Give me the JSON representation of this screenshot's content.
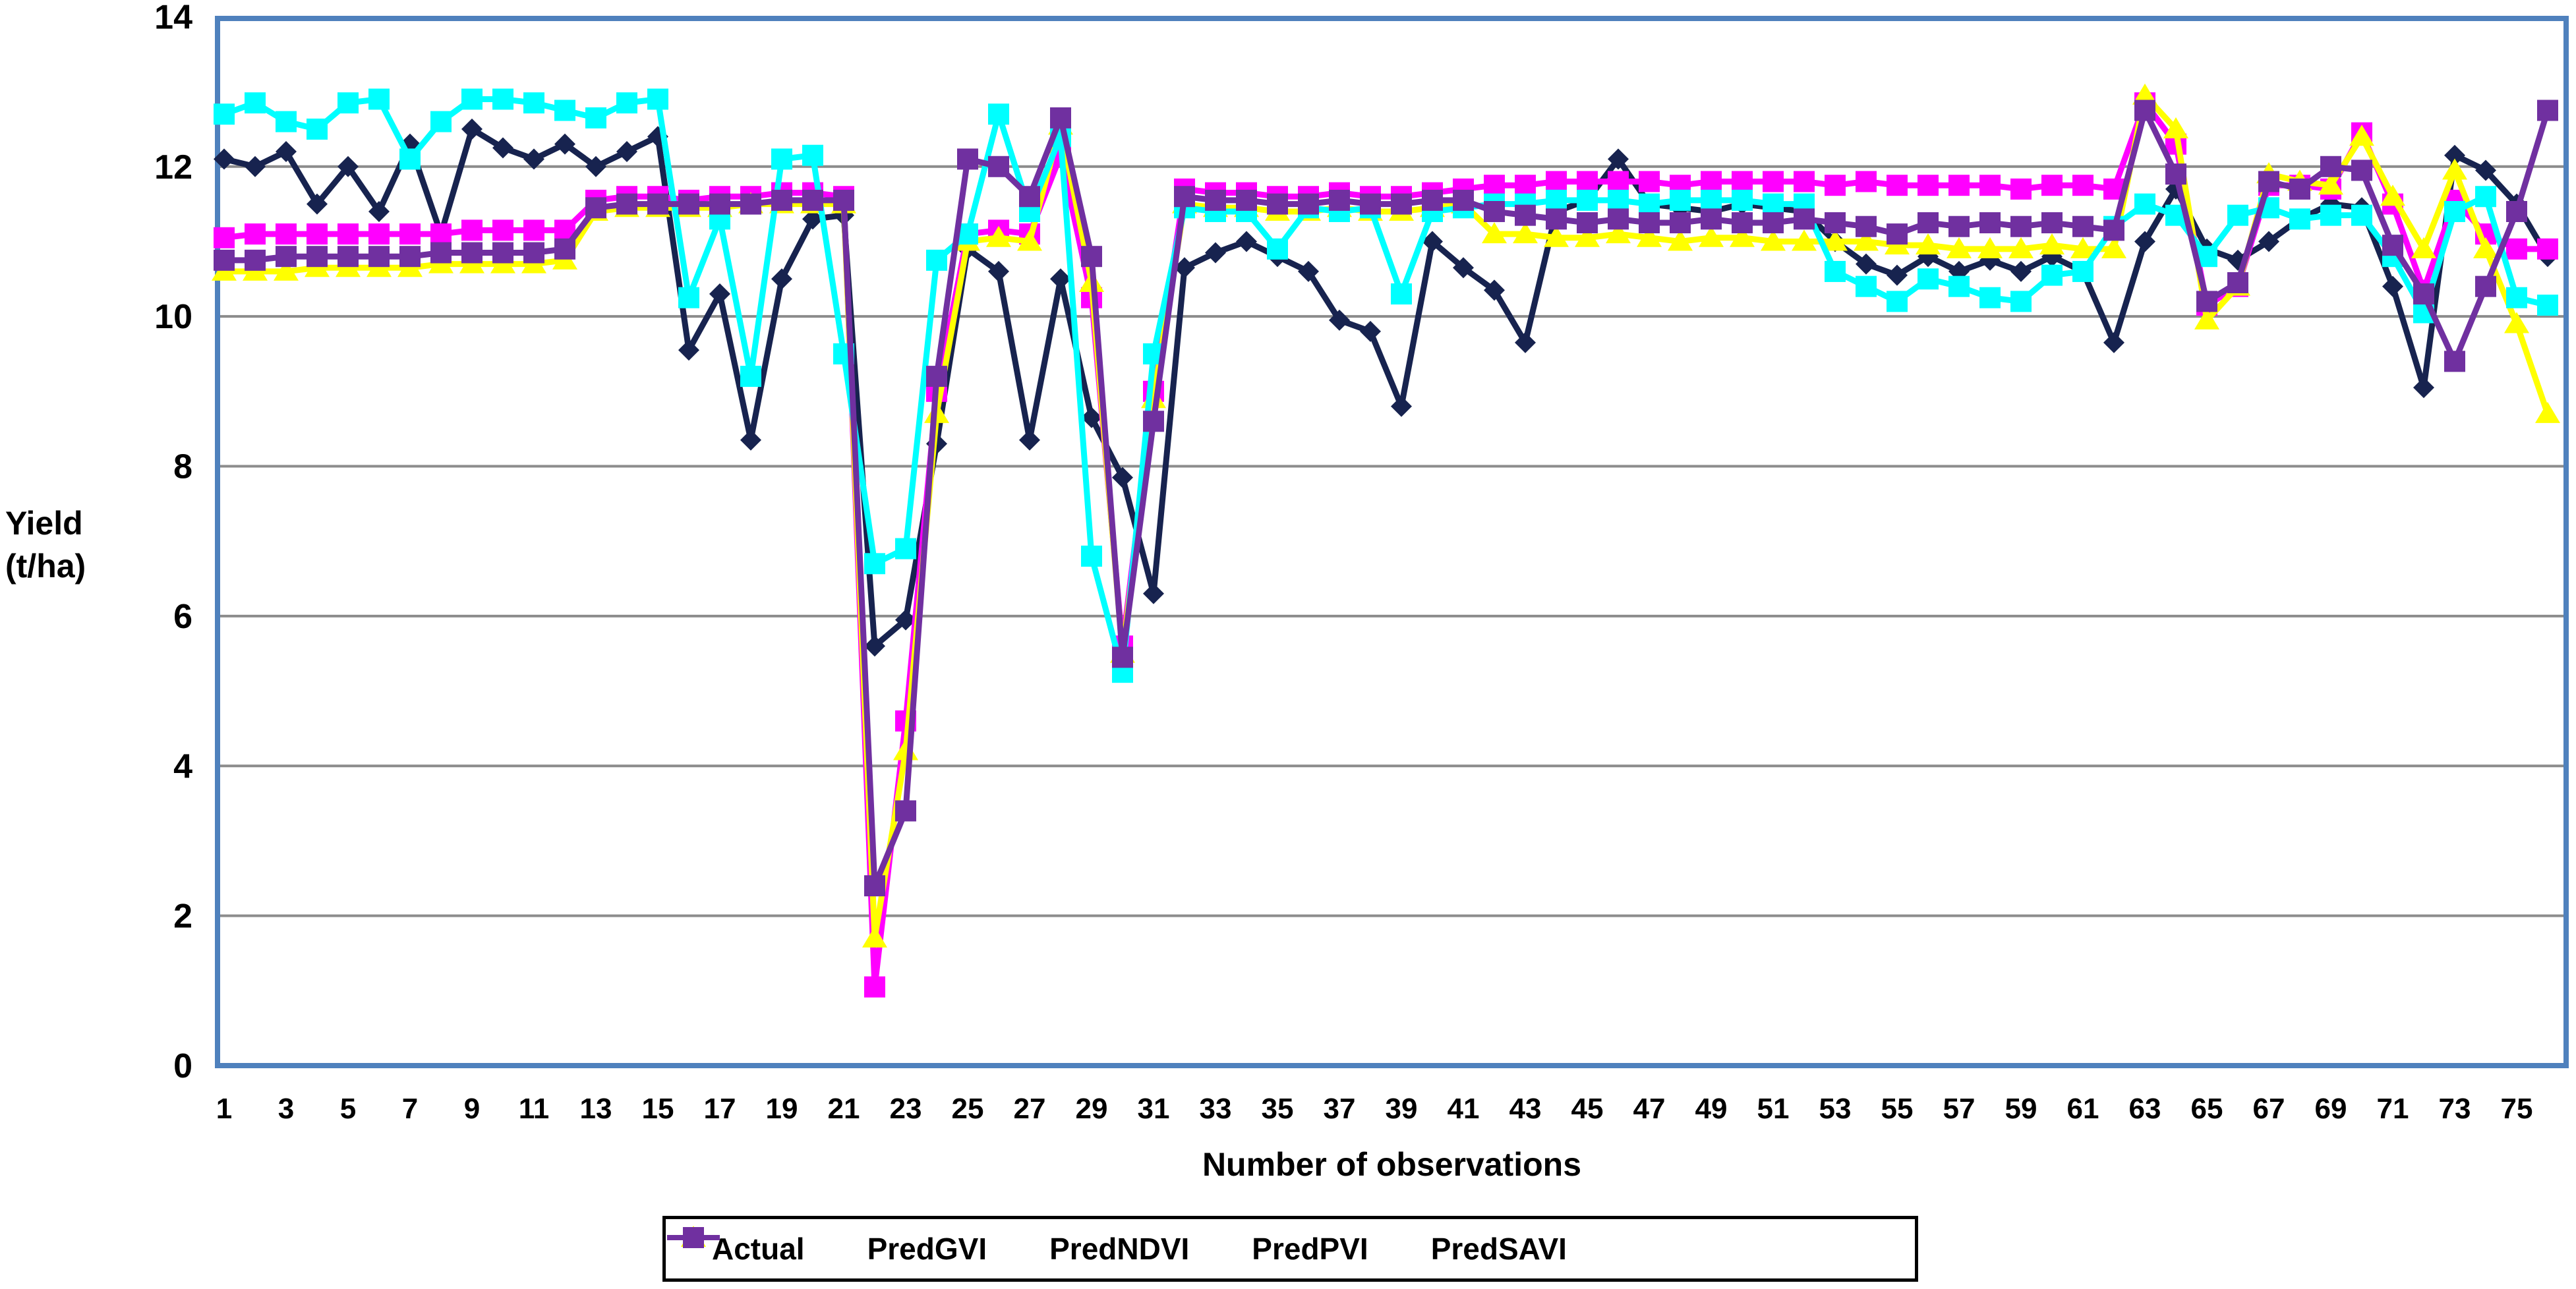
{
  "chart_data": {
    "type": "line",
    "title": "",
    "xlabel": "Number of observations",
    "ylabel_line1": "Yield",
    "ylabel_line2": "(t/ha)",
    "ylim": [
      0,
      14
    ],
    "yticks": [
      0,
      2,
      4,
      6,
      8,
      10,
      12,
      14
    ],
    "x_tick_labels": [
      "1",
      "3",
      "5",
      "7",
      "9",
      "11",
      "13",
      "15",
      "17",
      "19",
      "21",
      "23",
      "25",
      "27",
      "29",
      "31",
      "33",
      "35",
      "37",
      "39",
      "41",
      "43",
      "45",
      "47",
      "49",
      "51",
      "53",
      "55",
      "57",
      "59",
      "61",
      "63",
      "65",
      "67",
      "69",
      "71",
      "73",
      "75"
    ],
    "n_observations": 76,
    "grid": true,
    "legend_position": "bottom",
    "frame_color": "#4F81BD",
    "gridline_color": "#8C8C8C",
    "series": [
      {
        "name": "Actual",
        "color": "#17234F",
        "marker": "diamond",
        "values": [
          12.1,
          12.0,
          12.2,
          11.5,
          12.0,
          11.4,
          12.3,
          11.1,
          12.5,
          12.25,
          12.1,
          12.3,
          12.0,
          12.2,
          12.4,
          9.55,
          10.3,
          8.35,
          10.5,
          11.3,
          11.35,
          5.6,
          5.95,
          8.3,
          10.9,
          10.6,
          8.35,
          10.5,
          8.65,
          7.85,
          6.3,
          10.65,
          10.85,
          11.0,
          10.8,
          10.6,
          9.95,
          9.8,
          8.8,
          11.0,
          10.65,
          10.35,
          9.65,
          11.4,
          11.55,
          12.1,
          11.5,
          11.45,
          11.4,
          11.5,
          11.45,
          11.4,
          11.0,
          10.7,
          10.55,
          10.8,
          10.6,
          10.75,
          10.6,
          10.8,
          10.6,
          9.65,
          11.0,
          11.7,
          10.9,
          10.75,
          11.0,
          11.3,
          11.5,
          11.45,
          10.4,
          9.05,
          12.15,
          11.95,
          11.5,
          10.8
        ]
      },
      {
        "name": "PredGVI",
        "color": "#FF00FF",
        "marker": "square",
        "values": [
          11.05,
          11.1,
          11.1,
          11.1,
          11.1,
          11.1,
          11.1,
          11.1,
          11.15,
          11.15,
          11.15,
          11.15,
          11.55,
          11.6,
          11.6,
          11.55,
          11.6,
          11.6,
          11.65,
          11.65,
          11.6,
          1.05,
          4.6,
          9.0,
          11.1,
          11.15,
          11.1,
          12.15,
          10.25,
          5.6,
          9.0,
          11.7,
          11.65,
          11.65,
          11.6,
          11.6,
          11.65,
          11.6,
          11.6,
          11.65,
          11.7,
          11.75,
          11.75,
          11.8,
          11.8,
          11.8,
          11.8,
          11.75,
          11.8,
          11.8,
          11.8,
          11.8,
          11.75,
          11.8,
          11.75,
          11.75,
          11.75,
          11.75,
          11.7,
          11.75,
          11.75,
          11.7,
          12.85,
          12.3,
          10.15,
          10.4,
          11.75,
          11.75,
          11.7,
          12.45,
          11.5,
          10.35,
          11.55,
          11.1,
          10.9,
          10.9
        ]
      },
      {
        "name": "PredNDVI",
        "color": "#FFFF00",
        "marker": "triangle",
        "values": [
          10.6,
          10.6,
          10.6,
          10.65,
          10.65,
          10.65,
          10.65,
          10.7,
          10.7,
          10.7,
          10.7,
          10.75,
          11.4,
          11.45,
          11.45,
          11.45,
          11.45,
          11.5,
          11.5,
          11.5,
          11.5,
          1.7,
          4.2,
          8.7,
          11.0,
          11.05,
          11.0,
          12.55,
          10.45,
          5.5,
          8.9,
          11.5,
          11.45,
          11.45,
          11.4,
          11.4,
          11.45,
          11.4,
          11.4,
          11.45,
          11.5,
          11.1,
          11.1,
          11.05,
          11.05,
          11.1,
          11.05,
          11.0,
          11.05,
          11.05,
          11.0,
          11.0,
          11.0,
          11.0,
          10.95,
          10.95,
          10.9,
          10.9,
          10.9,
          10.95,
          10.9,
          10.9,
          12.95,
          12.5,
          9.95,
          10.4,
          11.9,
          11.8,
          11.75,
          12.4,
          11.6,
          10.9,
          11.95,
          10.9,
          9.9,
          8.7
        ]
      },
      {
        "name": "PredPVI",
        "color": "#00FFFF",
        "marker": "square",
        "values": [
          12.7,
          12.85,
          12.6,
          12.5,
          12.85,
          12.9,
          12.1,
          12.6,
          12.9,
          12.9,
          12.85,
          12.75,
          12.65,
          12.85,
          12.9,
          10.25,
          11.3,
          9.2,
          12.1,
          12.15,
          9.5,
          6.7,
          6.9,
          10.75,
          11.1,
          12.7,
          11.4,
          12.4,
          6.8,
          5.25,
          9.5,
          11.45,
          11.4,
          11.4,
          10.9,
          11.45,
          11.4,
          11.45,
          10.3,
          11.4,
          11.45,
          11.5,
          11.5,
          11.55,
          11.55,
          11.55,
          11.5,
          11.55,
          11.55,
          11.55,
          11.5,
          11.5,
          10.6,
          10.4,
          10.2,
          10.5,
          10.4,
          10.25,
          10.2,
          10.55,
          10.6,
          11.2,
          11.5,
          11.35,
          10.8,
          11.35,
          11.45,
          11.3,
          11.35,
          11.35,
          10.8,
          10.05,
          11.4,
          11.6,
          10.25,
          10.15
        ]
      },
      {
        "name": "PredSAVI",
        "color": "#7030A0",
        "marker": "square",
        "values": [
          10.75,
          10.75,
          10.8,
          10.8,
          10.8,
          10.8,
          10.8,
          10.85,
          10.85,
          10.85,
          10.85,
          10.9,
          11.45,
          11.5,
          11.5,
          11.5,
          11.5,
          11.5,
          11.55,
          11.55,
          11.55,
          2.4,
          3.4,
          9.2,
          12.1,
          12.0,
          11.6,
          12.65,
          10.8,
          5.45,
          8.6,
          11.6,
          11.55,
          11.55,
          11.5,
          11.5,
          11.55,
          11.5,
          11.5,
          11.55,
          11.55,
          11.4,
          11.35,
          11.3,
          11.25,
          11.3,
          11.25,
          11.25,
          11.3,
          11.25,
          11.25,
          11.3,
          11.25,
          11.2,
          11.1,
          11.25,
          11.2,
          11.25,
          11.2,
          11.25,
          11.2,
          11.15,
          12.75,
          11.9,
          10.2,
          10.45,
          11.8,
          11.7,
          12.0,
          11.95,
          10.95,
          10.3,
          9.4,
          10.4,
          11.4,
          12.75
        ]
      }
    ]
  }
}
